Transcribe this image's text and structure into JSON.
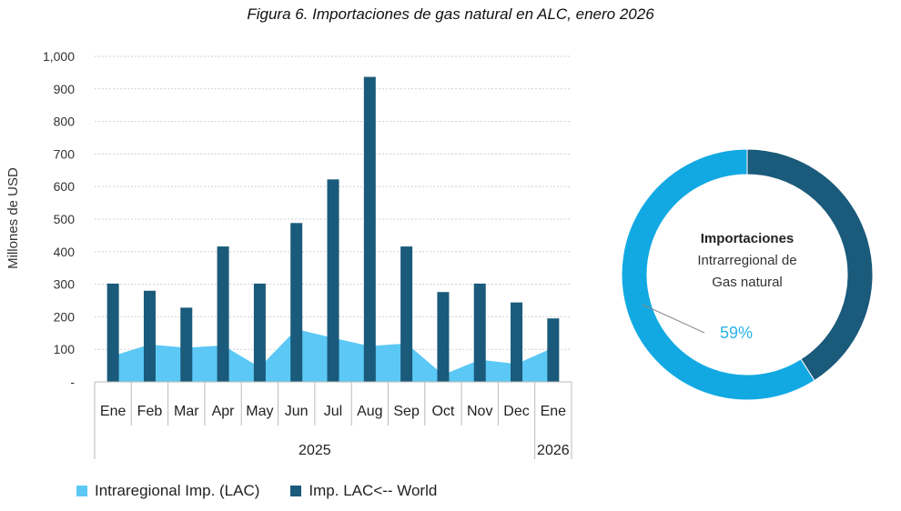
{
  "title": "Figura 6. Importaciones de gas natural en ALC, enero 2026",
  "chart_data": [
    {
      "type": "bar",
      "ylabel": "Millones de USD",
      "ylim": [
        0,
        1000
      ],
      "yticks": [
        "-",
        "100",
        "200",
        "300",
        "400",
        "500",
        "600",
        "700",
        "800",
        "900",
        "1,000"
      ],
      "grid": true,
      "categories": [
        "Ene",
        "Feb",
        "Mar",
        "Apr",
        "May",
        "Jun",
        "Jul",
        "Aug",
        "Sep",
        "Oct",
        "Nov",
        "Dec",
        "Ene"
      ],
      "year_groups": [
        {
          "label": "2025",
          "count": 12
        },
        {
          "label": "2026",
          "count": 1
        }
      ],
      "series": [
        {
          "name": "Intraregional Imp. (LAC)",
          "type": "area",
          "color": "#5BC8F5",
          "values": [
            80,
            115,
            105,
            112,
            45,
            162,
            135,
            110,
            118,
            22,
            68,
            55,
            105
          ]
        },
        {
          "name": "Imp. LAC<-- World",
          "type": "bar",
          "color": "#1A5A7A",
          "values": [
            302,
            280,
            228,
            416,
            302,
            488,
            622,
            937,
            416,
            276,
            302,
            244,
            195
          ]
        }
      ],
      "legend_position": "bottom-left"
    },
    {
      "type": "pie",
      "donut": true,
      "label_line1": "Importaciones",
      "label_line2": "Intrarregional de",
      "label_line3": "Gas natural",
      "slices": [
        {
          "name": "Intraregional",
          "value": 59,
          "color": "#12A9E3"
        },
        {
          "name": "World",
          "value": 41,
          "color": "#1A5A7A"
        }
      ],
      "callout": "59%"
    }
  ]
}
